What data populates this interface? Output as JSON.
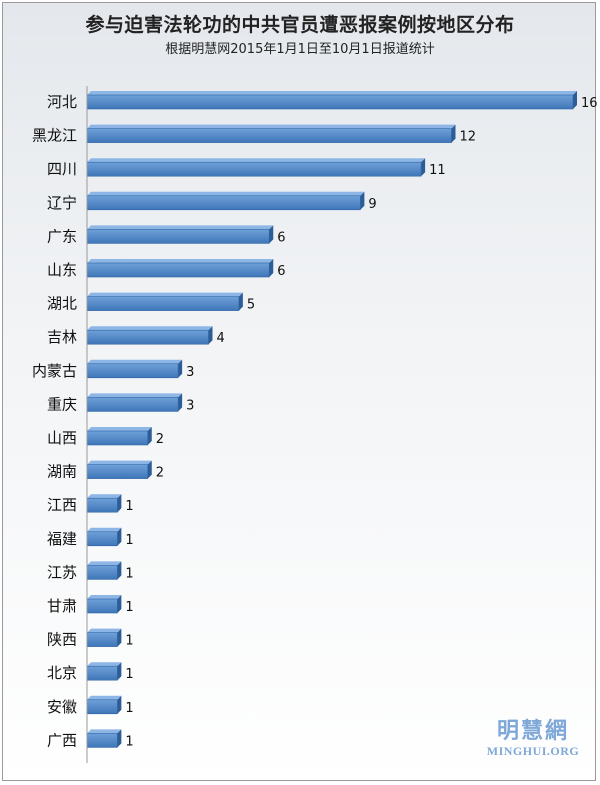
{
  "chart_data": {
    "type": "bar",
    "orientation": "horizontal",
    "title": "参与迫害法轮功的中共官员遭恶报案例按地区分布",
    "subtitle": "根据明慧网2015年1月1日至10月1日报道统计",
    "categories": [
      "河北",
      "黑龙江",
      "四川",
      "辽宁",
      "广东",
      "山东",
      "湖北",
      "吉林",
      "内蒙古",
      "重庆",
      "山西",
      "湖南",
      "江西",
      "福建",
      "江苏",
      "甘肃",
      "陕西",
      "北京",
      "安徽",
      "广西"
    ],
    "values": [
      16,
      12,
      11,
      9,
      6,
      6,
      5,
      4,
      3,
      3,
      2,
      2,
      1,
      1,
      1,
      1,
      1,
      1,
      1,
      1
    ],
    "xlim": [
      0,
      16
    ],
    "grid": false,
    "legend": "none",
    "bar_color": "#4f86c6"
  },
  "watermark": {
    "cn": "明慧網",
    "en": "MINGHUI.ORG"
  }
}
